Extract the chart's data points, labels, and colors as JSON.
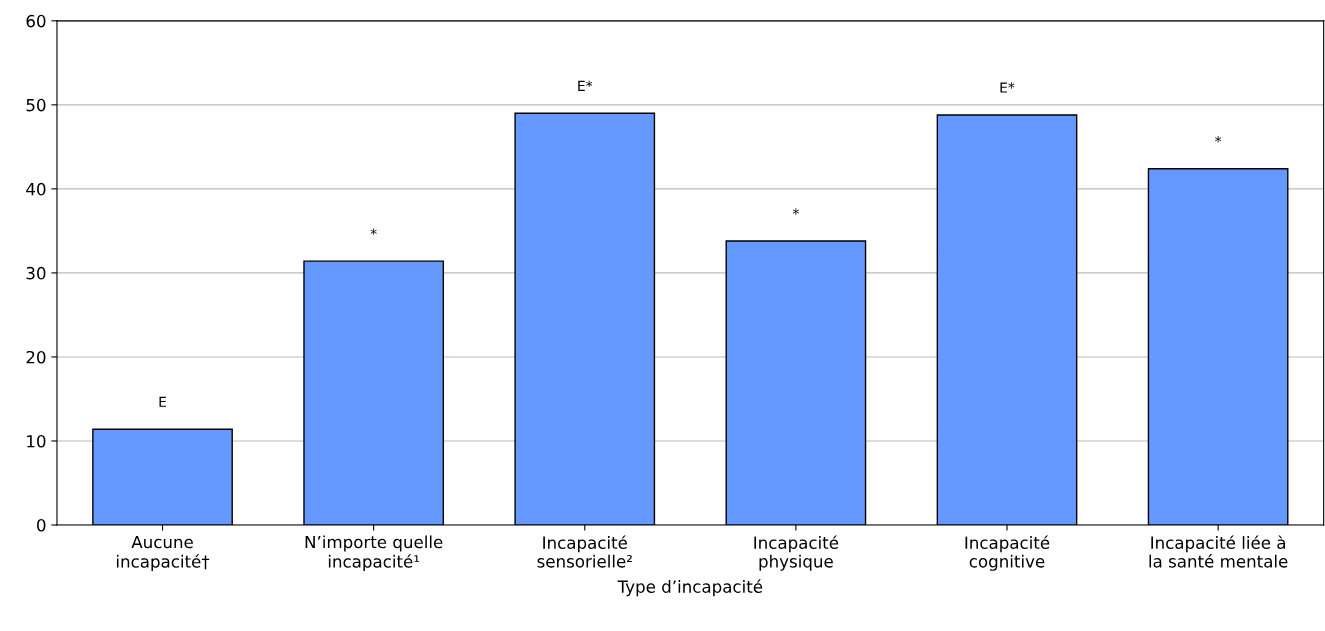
{
  "chart_data": {
    "type": "bar",
    "categories": [
      "Aucune\nincapacité†",
      "N’importe quelle\nincapacité¹",
      "Incapacité\nsensorielle²",
      "Incapacité\nphysique",
      "Incapacité\ncognitive",
      "Incapacité liée à\nla santé mentale"
    ],
    "values": [
      11.4,
      31.4,
      49.0,
      33.8,
      48.8,
      42.4
    ],
    "color": "#6699ff",
    "xlabel": "Type d’incapacité",
    "ylim": [
      0,
      60
    ],
    "yticks": [
      0,
      10,
      20,
      30,
      40,
      50,
      60
    ],
    "grid": "y",
    "value_labels": [
      "E",
      "*",
      "E*",
      "*",
      "E*",
      "*"
    ]
  }
}
